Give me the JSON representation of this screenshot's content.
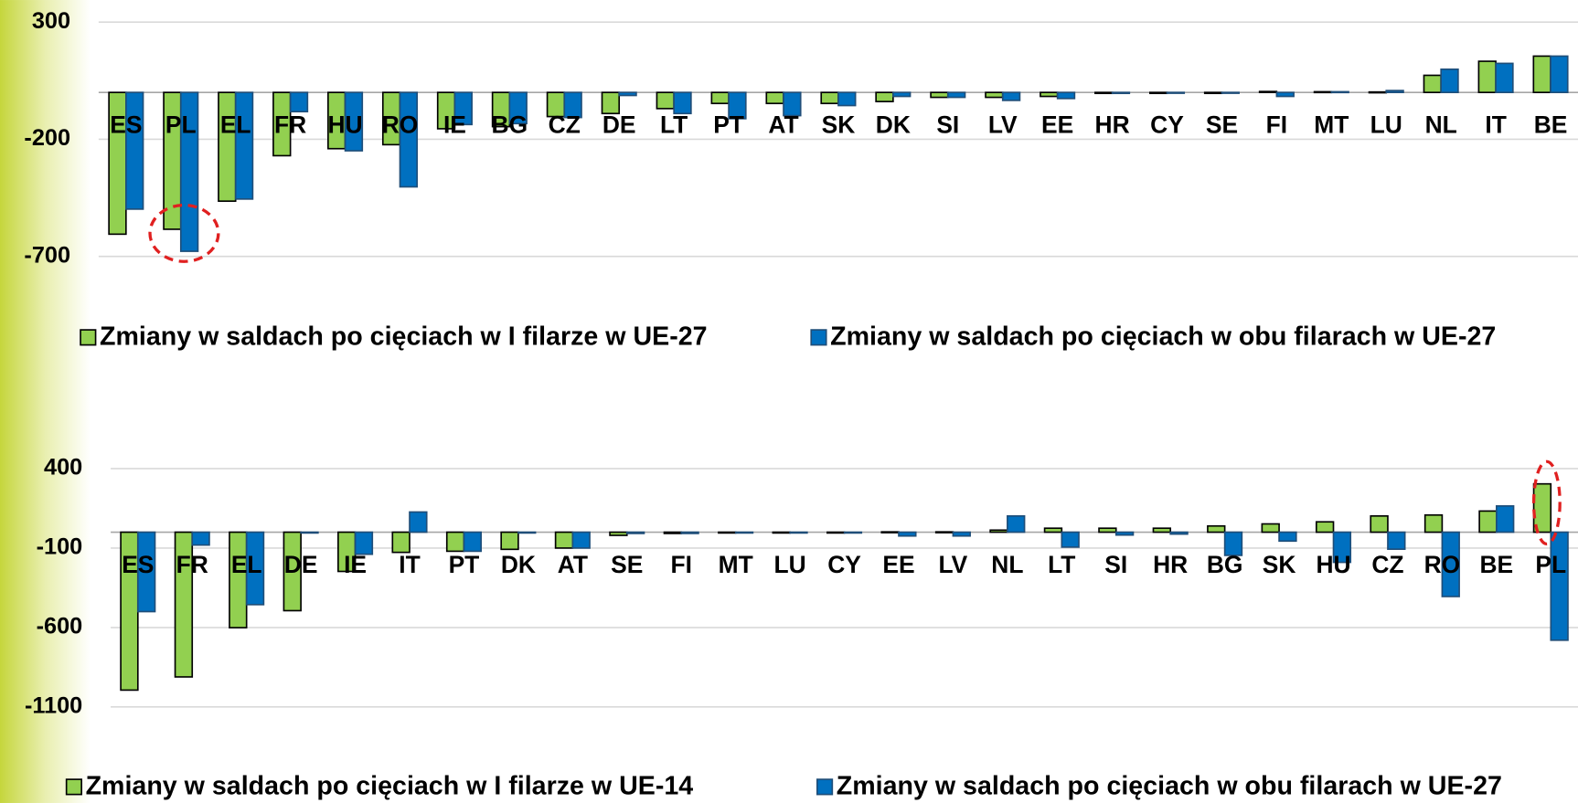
{
  "chart_data": [
    {
      "type": "bar",
      "categories": [
        "ES",
        "PL",
        "EL",
        "FR",
        "HU",
        "RO",
        "IE",
        "BG",
        "CZ",
        "DE",
        "LT",
        "PT",
        "AT",
        "SK",
        "DK",
        "SI",
        "LV",
        "EE",
        "HR",
        "CY",
        "SE",
        "FI",
        "MT",
        "LU",
        "NL",
        "IT",
        "BE"
      ],
      "series": [
        {
          "name": "Zmiany w saldach po cięciach w I filarze w UE-27",
          "color": "#92d050",
          "values": [
            -605,
            -584,
            -464,
            -270,
            -240,
            -223,
            -155,
            -146,
            -103,
            -90,
            -69,
            -47,
            -47,
            -47,
            -39,
            -21,
            -21,
            -17,
            -4,
            -4,
            -4,
            4,
            3,
            2,
            73,
            133,
            155
          ]
        },
        {
          "name": "Zmiany w saldach po cięciach w obu filarach w UE-27",
          "color": "#0070c0",
          "values": [
            -498,
            -678,
            -455,
            -82,
            -249,
            -403,
            -137,
            -133,
            -107,
            -13,
            -90,
            -112,
            -99,
            -56,
            -17,
            -21,
            -34,
            -26,
            -4,
            -2,
            -2,
            -17,
            3,
            8,
            99,
            124,
            155
          ]
        }
      ],
      "ylim": [
        -700,
        300
      ],
      "yticks": [
        300,
        -200,
        -700
      ],
      "grid": true
    },
    {
      "type": "bar",
      "categories": [
        "ES",
        "FR",
        "EL",
        "DE",
        "IE",
        "IT",
        "PT",
        "DK",
        "AT",
        "SE",
        "FI",
        "MT",
        "LU",
        "CY",
        "EE",
        "LV",
        "NL",
        "LT",
        "SI",
        "HR",
        "BG",
        "SK",
        "HU",
        "CZ",
        "RO",
        "BE",
        "PL"
      ],
      "series": [
        {
          "name": "Zmiany w saldach po cięciach w I filarze w UE-14",
          "color": "#92d050",
          "values": [
            -994,
            -911,
            -601,
            -494,
            -247,
            -127,
            -120,
            -108,
            -100,
            -20,
            -8,
            -3,
            -3,
            -3,
            2,
            2,
            13,
            25,
            25,
            25,
            39,
            52,
            65,
            102,
            108,
            133,
            304
          ]
        },
        {
          "name": "Zmiany w saldach po cięciach w obu filarach w UE-27",
          "color": "#0070c0",
          "values": [
            -500,
            -81,
            -456,
            -5,
            -139,
            127,
            -120,
            -3,
            -100,
            -8,
            -8,
            -3,
            -3,
            -3,
            -24,
            -24,
            102,
            -94,
            -18,
            -12,
            -146,
            -56,
            -190,
            -107,
            -405,
            165,
            -680
          ]
        }
      ],
      "ylim": [
        -1100,
        400
      ],
      "yticks": [
        400,
        -100,
        -600,
        -1100
      ],
      "grid": true
    }
  ]
}
